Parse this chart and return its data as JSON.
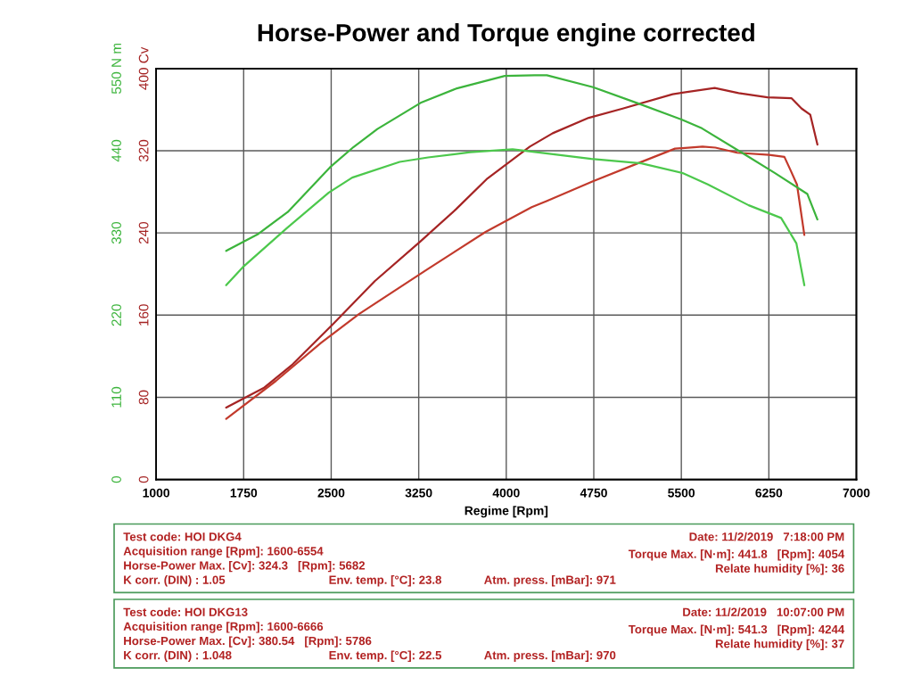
{
  "chart_data": {
    "type": "line",
    "title": "Horse-Power and Torque engine corrected",
    "xlabel": "Regime [Rpm]",
    "xlim": [
      1000,
      7000
    ],
    "xticks": [
      1000,
      1750,
      2500,
      3250,
      4000,
      4750,
      5500,
      6250,
      7000
    ],
    "ylim": [
      0,
      400
    ],
    "yticks": [
      0,
      80,
      160,
      240,
      320,
      {
        "value": 400,
        "label": "400 Cv"
      }
    ],
    "y2lim": [
      0,
      550
    ],
    "y2ticks": [
      0,
      110,
      220,
      330,
      440,
      {
        "value": 550,
        "label": "550 N m"
      }
    ],
    "grid": true,
    "series": [
      {
        "color": "#a52424",
        "axis": "y",
        "x": [
          1600,
          1921,
          2169,
          2522,
          2873,
          3267,
          3569,
          3839,
          4202,
          4398,
          4707,
          4997,
          5426,
          5786,
          5991,
          6238,
          6445,
          6531,
          6605,
          6666
        ],
        "values": [
          70,
          89,
          112,
          152,
          193,
          232,
          263,
          293,
          324,
          337,
          352,
          361,
          375,
          381,
          376,
          372,
          371,
          361,
          355,
          326
        ]
      },
      {
        "color": "#c23a2c",
        "axis": "y",
        "x": [
          1600,
          2027,
          2413,
          2738,
          3316,
          3823,
          4218,
          4345,
          4738,
          5156,
          5446,
          5682,
          5792,
          5978,
          6252,
          6383,
          6436,
          6491,
          6554
        ],
        "values": [
          59,
          96,
          133,
          161,
          204,
          241,
          265,
          271,
          290,
          309,
          322,
          324,
          323,
          318,
          316,
          314,
          301,
          287,
          238
        ]
      },
      {
        "color": "#3cb43c",
        "axis": "y2",
        "x": [
          1600,
          1869,
          2128,
          2491,
          2692,
          2896,
          3266,
          3569,
          3987,
          4244,
          4348,
          4744,
          5118,
          5497,
          5676,
          6023,
          6303,
          6580,
          6666
        ],
        "values": [
          306,
          328,
          358,
          418,
          445,
          469,
          504,
          523,
          540,
          541,
          541,
          525,
          504,
          482,
          470,
          437,
          410,
          382,
          348
        ]
      },
      {
        "color": "#4cc84c",
        "axis": "y2",
        "x": [
          1600,
          1742,
          2117,
          2480,
          2680,
          3087,
          3330,
          3692,
          4054,
          4150,
          4728,
          5157,
          5511,
          5727,
          6077,
          6355,
          6486,
          6554
        ],
        "values": [
          260,
          284,
          336,
          384,
          404,
          425,
          431,
          438,
          442,
          440,
          429,
          423,
          410,
          395,
          367,
          350,
          316,
          260
        ]
      }
    ],
    "annotations": [
      "Test code: HOI DKG4",
      "Acquisition range [Rpm]: 1600-6554",
      "Horse-Power Max. [Cv]: 324.3   [Rpm]: 5682",
      "K corr. (DIN) : 1.05",
      "Env. temp. [°C]: 23.8",
      "Atm. press. [mBar]: 971",
      "Date: 11/2/2019   7:18:00 PM",
      "Torque Max. [N·m]: 441.8   [Rpm]: 4054",
      "Relate humidity [%]: 36",
      "Test code: HOI DKG13",
      "Acquisition range [Rpm]: 1600-6666",
      "Horse-Power Max. [Cv]: 380.54   [Rpm]: 5786",
      "K corr. (DIN) : 1.048",
      "Env. temp. [°C]: 22.5",
      "Atm. press. [mBar]: 970",
      "Date: 11/2/2019   10:07:00 PM",
      "Torque Max. [N·m]: 541.3   [Rpm]: 4244",
      "Relate humidity [%]: 37"
    ]
  }
}
